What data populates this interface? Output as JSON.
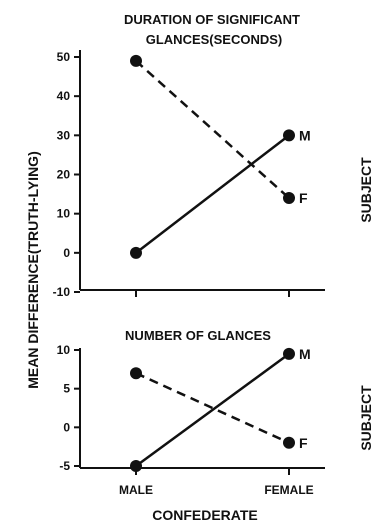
{
  "chart_data": [
    {
      "type": "line",
      "title": "DURATION OF SIGNIFICANT GLANCES(SECONDS)",
      "categories": [
        "MALE",
        "FEMALE"
      ],
      "ylim": [
        -10,
        50
      ],
      "yticks": [
        "50",
        "40",
        "30",
        "20",
        "10",
        "0",
        "-10"
      ],
      "series": [
        {
          "name": "M",
          "values": [
            0,
            30
          ],
          "line_style": "solid"
        },
        {
          "name": "F",
          "values": [
            49,
            14
          ],
          "line_style": "dashed"
        }
      ],
      "side_label": "SUBJECT"
    },
    {
      "type": "line",
      "title": "NUMBER OF GLANCES",
      "categories": [
        "MALE",
        "FEMALE"
      ],
      "ylim": [
        -5,
        10
      ],
      "yticks": [
        "10",
        "5",
        "0",
        "-5"
      ],
      "series": [
        {
          "name": "M",
          "values": [
            -5,
            9.5
          ],
          "line_style": "solid"
        },
        {
          "name": "F",
          "values": [
            7,
            -2
          ],
          "line_style": "dashed"
        }
      ],
      "side_label": "SUBJECT"
    }
  ],
  "ylabel": "MEAN DIFFERENCE(TRUTH-LYING)",
  "xlabel": "CONFEDERATE",
  "x_tick_labels": [
    "MALE",
    "FEMALE"
  ],
  "colors": {
    "ink": "#111111",
    "background": "#ffffff"
  }
}
